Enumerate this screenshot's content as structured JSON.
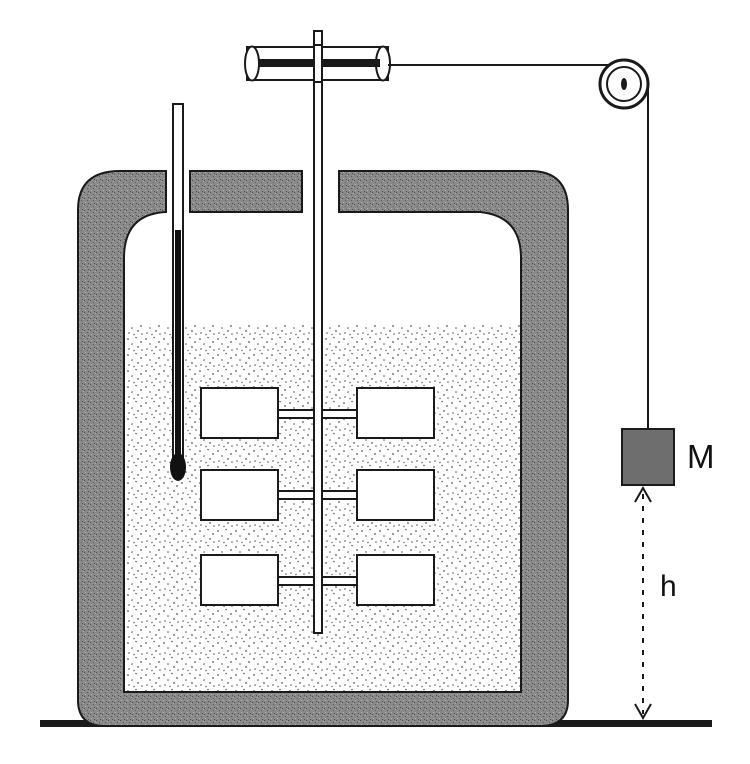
{
  "labels": {
    "mass": "M",
    "height": "h"
  },
  "colors": {
    "wall_fill": "#8c8c8c",
    "wall_stroke": "#1a1a1a",
    "line": "#1a1a1a",
    "liquid_dots": "#555555",
    "mass_fill": "#6e6e6e",
    "thermometer_mercury": "#111111",
    "background": "#ffffff"
  },
  "icons": {
    "pulley_drive": "grooved-wheel",
    "pulley_corner": "round-pulley",
    "thermometer": "thermometer",
    "mass": "hanging-block"
  }
}
